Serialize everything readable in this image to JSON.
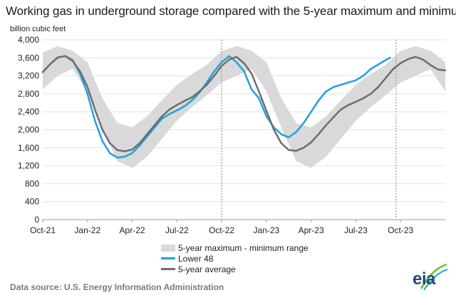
{
  "chart_data": {
    "type": "line",
    "title": "Working gas in underground  storage compared with the 5-year maximum and minimum",
    "ylabel": "billion cubic feet",
    "xlabel": "",
    "ylim": [
      0,
      4000
    ],
    "y_ticks": [
      "4,000",
      "3,600",
      "3,200",
      "2,800",
      "2,400",
      "2,000",
      "1,600",
      "1,200",
      "800",
      "400",
      "0"
    ],
    "x_tick_labels": [
      "Oct-21",
      "Jan-22",
      "Apr-22",
      "Jul-22",
      "Oct-22",
      "Jan-23",
      "Apr-23",
      "Jul-23",
      "Oct-23"
    ],
    "x_range_months": [
      0,
      27
    ],
    "vertical_markers_month": [
      12.0,
      23.7
    ],
    "series": [
      {
        "name": "5-year maximum - minimum range",
        "kind": "band",
        "x": [
          0,
          1,
          2,
          3,
          4,
          5,
          6,
          7,
          8,
          9,
          10,
          11,
          12,
          13,
          14,
          15,
          16,
          17,
          18,
          19,
          20,
          21,
          22,
          23,
          24,
          25,
          26,
          27
        ],
        "max": [
          3720,
          3860,
          3760,
          3500,
          2700,
          2150,
          2050,
          2300,
          2660,
          3000,
          3240,
          3440,
          3750,
          3860,
          3760,
          3500,
          2700,
          2150,
          2050,
          2300,
          2660,
          3000,
          3240,
          3440,
          3750,
          3860,
          3760,
          3500
        ],
        "min": [
          2900,
          3200,
          3350,
          2850,
          2050,
          1300,
          1150,
          1400,
          1800,
          2200,
          2500,
          2770,
          3050,
          3200,
          3350,
          2850,
          2050,
          1300,
          1150,
          1400,
          1800,
          2200,
          2500,
          2770,
          3050,
          3200,
          3350,
          2850
        ]
      },
      {
        "name": "Lower 48",
        "kind": "line",
        "x": [
          0,
          0.5,
          1,
          1.5,
          2,
          2.5,
          3,
          3.5,
          4,
          4.5,
          5,
          5.5,
          6,
          6.5,
          7,
          7.5,
          8,
          8.5,
          9,
          9.5,
          10,
          10.5,
          11,
          11.5,
          12,
          12.5,
          13,
          13.5,
          14,
          14.5,
          15,
          15.5,
          16,
          16.5,
          17,
          17.5,
          18,
          18.5,
          19,
          19.5,
          20,
          20.5,
          21,
          21.5,
          22,
          22.5,
          23,
          23.3
        ],
        "values": [
          3280,
          3460,
          3600,
          3640,
          3550,
          3250,
          2800,
          2200,
          1750,
          1480,
          1380,
          1400,
          1480,
          1650,
          1850,
          2050,
          2250,
          2350,
          2430,
          2520,
          2650,
          2820,
          3050,
          3300,
          3500,
          3640,
          3500,
          3300,
          2900,
          2700,
          2300,
          2050,
          1900,
          1830,
          1950,
          2150,
          2400,
          2650,
          2850,
          2950,
          3000,
          3050,
          3100,
          3200,
          3350,
          3450,
          3550,
          3600
        ]
      },
      {
        "name": "5-year average",
        "kind": "line",
        "x": [
          0,
          0.5,
          1,
          1.5,
          2,
          2.5,
          3,
          3.5,
          4,
          4.5,
          5,
          5.5,
          6,
          6.5,
          7,
          7.5,
          8,
          8.5,
          9,
          9.5,
          10,
          10.5,
          11,
          11.5,
          12,
          12.5,
          13,
          13.5,
          14,
          14.5,
          15,
          15.5,
          16,
          16.5,
          17,
          17.5,
          18,
          18.5,
          19,
          19.5,
          20,
          20.5,
          21,
          21.5,
          22,
          22.5,
          23,
          23.5,
          24,
          24.5,
          25,
          25.5,
          26,
          26.5,
          27
        ],
        "values": [
          3280,
          3460,
          3610,
          3640,
          3530,
          3300,
          2950,
          2450,
          2000,
          1700,
          1550,
          1520,
          1560,
          1700,
          1900,
          2100,
          2300,
          2450,
          2550,
          2640,
          2720,
          2850,
          3000,
          3200,
          3420,
          3560,
          3620,
          3480,
          3250,
          2850,
          2420,
          2000,
          1700,
          1550,
          1530,
          1600,
          1720,
          1900,
          2100,
          2280,
          2450,
          2550,
          2620,
          2700,
          2800,
          2950,
          3150,
          3350,
          3480,
          3570,
          3620,
          3560,
          3440,
          3340,
          3320
        ]
      }
    ],
    "legend": [
      "5-year maximum - minimum range",
      "Lower 48",
      "5-year average"
    ]
  },
  "source": "Data source: U.S. Energy Information Administration",
  "logo_text": "eia",
  "colors": {
    "band": "#d9d9d9",
    "lower48": "#1da1e0",
    "average": "#6d6d6d",
    "grid": "#e2e2e2",
    "axis": "#9a9a9a",
    "logo": "#1b4a7a"
  }
}
